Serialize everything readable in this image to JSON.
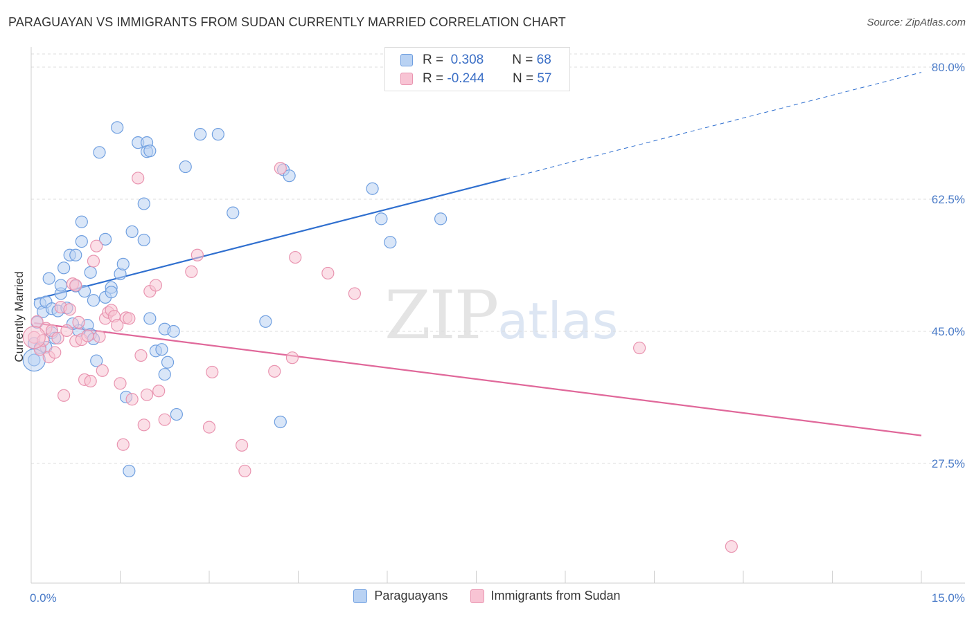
{
  "title": "PARAGUAYAN VS IMMIGRANTS FROM SUDAN CURRENTLY MARRIED CORRELATION CHART",
  "source": "Source: ZipAtlas.com",
  "watermark": {
    "zip": "ZIP",
    "atlas": "atlas"
  },
  "legend": {
    "rows": [
      {
        "r_label": "R =",
        "r_value": "0.308",
        "n_label": "N =",
        "n_value": "68"
      },
      {
        "r_label": "R =",
        "r_value": "-0.244",
        "n_label": "N =",
        "n_value": "57"
      }
    ]
  },
  "colors": {
    "blue_fill": "#b9d2f3",
    "blue_stroke": "#6f9fe0",
    "blue_line": "#2f6fcf",
    "pink_fill": "#f8c4d4",
    "pink_stroke": "#e994b0",
    "pink_line": "#e0689a",
    "grid": "#dcdcdc",
    "tick_text": "#4a7bc8"
  },
  "chart_data": {
    "type": "scatter",
    "title": "PARAGUAYAN VS IMMIGRANTS FROM SUDAN CURRENTLY MARRIED CORRELATION CHART",
    "xlabel": "",
    "ylabel": "Currently Married",
    "xlim": [
      0,
      15
    ],
    "ylim": [
      10,
      82
    ],
    "x_tick_labels": [
      "0.0%",
      "15.0%"
    ],
    "y_ticks": [
      27.5,
      45.0,
      62.5,
      80.0
    ],
    "y_tick_labels": [
      "27.5%",
      "45.0%",
      "62.5%",
      "80.0%"
    ],
    "grid": true,
    "legend_position": "top-center",
    "series": [
      {
        "name": "Paraguayans",
        "color": "#6f9fe0",
        "r": 0.308,
        "n": 68,
        "trend": {
          "x": [
            0.05,
            8.0
          ],
          "y": [
            49.2,
            65.2
          ],
          "dashed_to": [
            15.0,
            79.3
          ]
        },
        "points": [
          [
            0.05,
            43.4
          ],
          [
            0.05,
            41.2
          ],
          [
            0.1,
            46.2
          ],
          [
            0.15,
            48.7
          ],
          [
            0.2,
            47.6
          ],
          [
            0.25,
            48.9
          ],
          [
            0.25,
            42.9
          ],
          [
            0.3,
            52.0
          ],
          [
            0.35,
            48.0
          ],
          [
            0.35,
            44.8
          ],
          [
            0.4,
            44.1
          ],
          [
            0.45,
            47.7
          ],
          [
            0.5,
            50.0
          ],
          [
            0.5,
            51.1
          ],
          [
            0.55,
            53.4
          ],
          [
            0.6,
            48.1
          ],
          [
            0.65,
            55.1
          ],
          [
            0.75,
            55.1
          ],
          [
            0.75,
            51.0
          ],
          [
            0.8,
            45.1
          ],
          [
            0.85,
            56.9
          ],
          [
            0.85,
            59.5
          ],
          [
            0.9,
            50.3
          ],
          [
            0.95,
            45.8
          ],
          [
            1.0,
            44.6
          ],
          [
            1.0,
            52.8
          ],
          [
            1.05,
            44.0
          ],
          [
            1.05,
            49.1
          ],
          [
            1.1,
            41.1
          ],
          [
            1.15,
            68.7
          ],
          [
            1.25,
            49.5
          ],
          [
            1.25,
            57.2
          ],
          [
            1.35,
            50.8
          ],
          [
            1.45,
            72.0
          ],
          [
            1.5,
            52.6
          ],
          [
            1.55,
            53.9
          ],
          [
            1.6,
            36.3
          ],
          [
            1.65,
            26.5
          ],
          [
            1.7,
            58.2
          ],
          [
            1.8,
            70.0
          ],
          [
            1.9,
            61.9
          ],
          [
            1.9,
            57.1
          ],
          [
            1.95,
            70.0
          ],
          [
            1.95,
            68.8
          ],
          [
            2.0,
            68.9
          ],
          [
            2.0,
            46.7
          ],
          [
            2.1,
            42.4
          ],
          [
            2.2,
            42.6
          ],
          [
            2.25,
            45.3
          ],
          [
            2.25,
            39.3
          ],
          [
            2.3,
            40.9
          ],
          [
            2.4,
            45.0
          ],
          [
            2.45,
            34.0
          ],
          [
            2.6,
            66.8
          ],
          [
            2.85,
            71.1
          ],
          [
            3.15,
            71.1
          ],
          [
            3.4,
            60.7
          ],
          [
            3.95,
            46.3
          ],
          [
            4.2,
            33.0
          ],
          [
            4.25,
            66.4
          ],
          [
            4.35,
            65.6
          ],
          [
            5.75,
            63.9
          ],
          [
            5.9,
            59.9
          ],
          [
            6.05,
            56.8
          ],
          [
            6.9,
            59.9
          ],
          [
            0.15,
            42.8
          ],
          [
            0.7,
            46.0
          ],
          [
            1.35,
            50.2
          ]
        ],
        "large_points": [
          [
            0.05,
            41.2
          ]
        ]
      },
      {
        "name": "Immigrants from Sudan",
        "color": "#e994b0",
        "r": -0.244,
        "n": 57,
        "trend": {
          "x": [
            0.05,
            15.0
          ],
          "y": [
            46.1,
            31.2
          ]
        },
        "points": [
          [
            0.05,
            44.2
          ],
          [
            0.1,
            46.3
          ],
          [
            0.15,
            42.6
          ],
          [
            0.2,
            43.8
          ],
          [
            0.25,
            45.4
          ],
          [
            0.3,
            41.6
          ],
          [
            0.35,
            45.1
          ],
          [
            0.4,
            42.2
          ],
          [
            0.45,
            44.1
          ],
          [
            0.5,
            48.2
          ],
          [
            0.55,
            36.5
          ],
          [
            0.6,
            45.1
          ],
          [
            0.65,
            47.9
          ],
          [
            0.7,
            51.3
          ],
          [
            0.75,
            51.1
          ],
          [
            0.75,
            43.7
          ],
          [
            0.8,
            46.2
          ],
          [
            0.85,
            43.9
          ],
          [
            0.9,
            38.6
          ],
          [
            0.95,
            44.4
          ],
          [
            1.0,
            38.4
          ],
          [
            1.05,
            54.3
          ],
          [
            1.1,
            56.3
          ],
          [
            1.15,
            44.3
          ],
          [
            1.2,
            39.8
          ],
          [
            1.25,
            46.7
          ],
          [
            1.3,
            47.5
          ],
          [
            1.35,
            47.8
          ],
          [
            1.4,
            47.0
          ],
          [
            1.45,
            45.8
          ],
          [
            1.5,
            38.1
          ],
          [
            1.55,
            30.0
          ],
          [
            1.6,
            46.8
          ],
          [
            1.65,
            46.7
          ],
          [
            1.7,
            36.0
          ],
          [
            1.8,
            65.3
          ],
          [
            1.85,
            41.8
          ],
          [
            1.9,
            32.6
          ],
          [
            1.95,
            36.6
          ],
          [
            2.0,
            50.3
          ],
          [
            2.1,
            51.1
          ],
          [
            2.15,
            37.1
          ],
          [
            2.25,
            33.3
          ],
          [
            2.7,
            52.9
          ],
          [
            2.8,
            55.1
          ],
          [
            3.0,
            32.3
          ],
          [
            3.05,
            39.6
          ],
          [
            3.55,
            29.9
          ],
          [
            3.6,
            26.5
          ],
          [
            4.1,
            39.7
          ],
          [
            4.2,
            66.6
          ],
          [
            4.4,
            41.5
          ],
          [
            4.45,
            54.8
          ],
          [
            5.0,
            52.7
          ],
          [
            5.45,
            50.0
          ],
          [
            10.25,
            42.8
          ],
          [
            11.8,
            16.5
          ]
        ],
        "large_points": [
          [
            0.05,
            44.2
          ]
        ]
      }
    ]
  },
  "bottom_legend": [
    {
      "label": "Paraguayans"
    },
    {
      "label": "Immigrants from Sudan"
    }
  ]
}
